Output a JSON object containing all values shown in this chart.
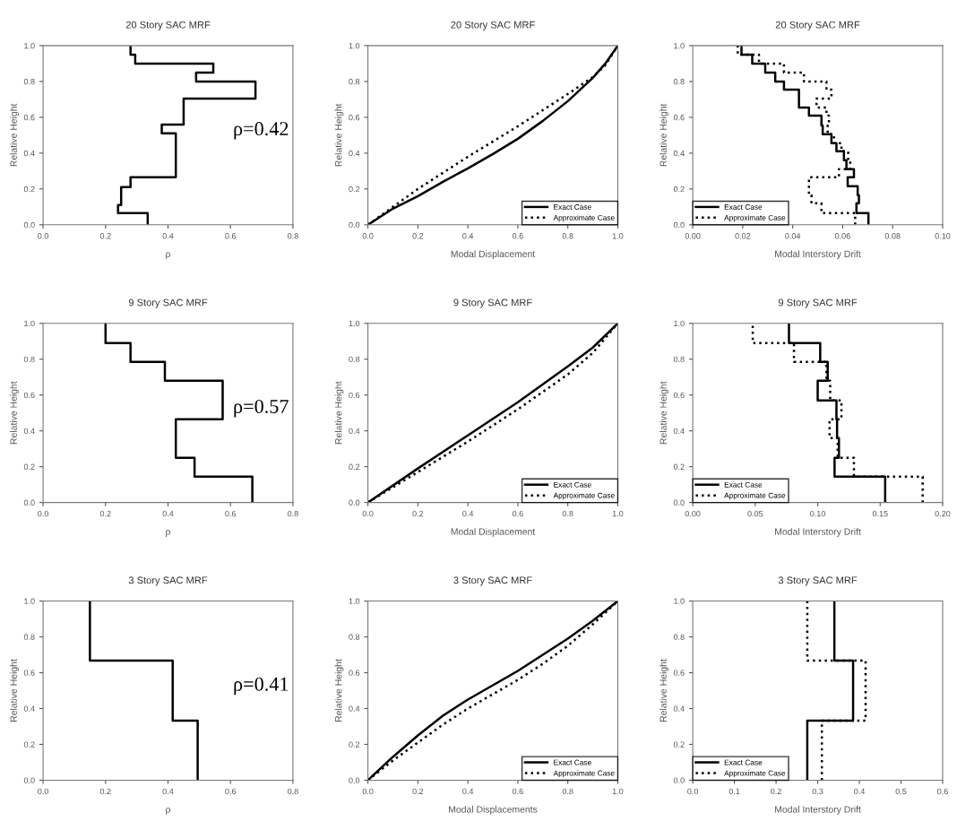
{
  "chart_data": [
    {
      "type": "line",
      "title": "20 Story SAC MRF",
      "xlabel": "ρ",
      "ylabel": "Relative Height",
      "annotations": [
        "ρ=0.42"
      ],
      "grid": false,
      "marker": "none",
      "xlim": [
        0,
        0.8
      ],
      "xticks": [
        {
          "value": 0,
          "label": "0.0"
        },
        {
          "value": 0.2,
          "label": "0.2"
        },
        {
          "value": 0.4,
          "label": "0.4"
        },
        {
          "value": 0.6,
          "label": "0.6"
        },
        {
          "value": 0.8,
          "label": "0.8"
        }
      ],
      "ylim": [
        0,
        1
      ],
      "yticks": [
        {
          "value": 0,
          "label": "0.0"
        },
        {
          "value": 0.2,
          "label": "0.2"
        },
        {
          "value": 0.4,
          "label": "0.4"
        },
        {
          "value": 0.6,
          "label": "0.6"
        },
        {
          "value": 0.8,
          "label": "0.8"
        },
        {
          "value": 1,
          "label": "1.0"
        }
      ],
      "series": [
        {
          "color": "#000000",
          "line_style": "solid",
          "x": [
            0.335,
            0.335,
            0.24,
            0.24,
            0.25,
            0.25,
            0.28,
            0.28,
            0.425,
            0.425,
            0.38,
            0.38,
            0.45,
            0.45,
            0.68,
            0.68,
            0.49,
            0.49,
            0.545,
            0.545,
            0.295,
            0.295,
            0.28,
            0.28
          ],
          "values": [
            0,
            0.065,
            0.065,
            0.11,
            0.11,
            0.21,
            0.21,
            0.265,
            0.265,
            0.51,
            0.51,
            0.56,
            0.56,
            0.705,
            0.705,
            0.8,
            0.8,
            0.85,
            0.85,
            0.9,
            0.9,
            0.95,
            0.95,
            1
          ]
        }
      ]
    },
    {
      "type": "line",
      "title": "20 Story SAC MRF",
      "xlabel": "Modal Displacement",
      "ylabel": "Relative Height",
      "grid": false,
      "marker": "none",
      "legend": "bottom right",
      "xlim": [
        0,
        1
      ],
      "xticks": [
        {
          "value": 0,
          "label": "0.0"
        },
        {
          "value": 0.2,
          "label": "0.2"
        },
        {
          "value": 0.4,
          "label": "0.4"
        },
        {
          "value": 0.6,
          "label": "0.6"
        },
        {
          "value": 0.8,
          "label": "0.8"
        },
        {
          "value": 1,
          "label": "1.0"
        }
      ],
      "ylim": [
        0,
        1
      ],
      "yticks": [
        {
          "value": 0,
          "label": "0.0"
        },
        {
          "value": 0.2,
          "label": "0.2"
        },
        {
          "value": 0.4,
          "label": "0.4"
        },
        {
          "value": 0.6,
          "label": "0.6"
        },
        {
          "value": 0.8,
          "label": "0.8"
        },
        {
          "value": 1,
          "label": "1.0"
        }
      ],
      "series": [
        {
          "name": "Exact Case",
          "color": "#000000",
          "line_style": "solid",
          "x": [
            0,
            0.1,
            0.2,
            0.3,
            0.4,
            0.5,
            0.6,
            0.7,
            0.8,
            0.9,
            0.95,
            1
          ],
          "values": [
            0,
            0.09,
            0.16,
            0.24,
            0.315,
            0.395,
            0.48,
            0.58,
            0.69,
            0.82,
            0.9,
            1
          ]
        },
        {
          "name": "Approximate Case",
          "color": "#000000",
          "line_style": "dotted",
          "x": [
            0,
            0.1,
            0.2,
            0.3,
            0.4,
            0.5,
            0.6,
            0.7,
            0.8,
            0.9,
            0.95,
            1
          ],
          "values": [
            0,
            0.1,
            0.2,
            0.29,
            0.38,
            0.465,
            0.55,
            0.64,
            0.73,
            0.825,
            0.89,
            1
          ]
        }
      ]
    },
    {
      "type": "line",
      "title": "20 Story SAC MRF",
      "xlabel": "Modal Interstory Drift",
      "ylabel": "Relative Height",
      "grid": false,
      "marker": "none",
      "legend": "bottom left",
      "xlim": [
        0,
        0.1
      ],
      "xticks": [
        {
          "value": 0,
          "label": "0.00"
        },
        {
          "value": 0.02,
          "label": "0.02"
        },
        {
          "value": 0.04,
          "label": "0.04"
        },
        {
          "value": 0.06,
          "label": "0.06"
        },
        {
          "value": 0.08,
          "label": "0.08"
        },
        {
          "value": 0.1,
          "label": "0.10"
        }
      ],
      "ylim": [
        0,
        1
      ],
      "yticks": [
        {
          "value": 0,
          "label": "0.0"
        },
        {
          "value": 0.2,
          "label": "0.2"
        },
        {
          "value": 0.4,
          "label": "0.4"
        },
        {
          "value": 0.6,
          "label": "0.6"
        },
        {
          "value": 0.8,
          "label": "0.8"
        },
        {
          "value": 1,
          "label": "1.0"
        }
      ],
      "series": [
        {
          "name": "Exact Case",
          "color": "#000000",
          "line_style": "solid",
          "x": [
            0.0703,
            0.0703,
            0.0655,
            0.0655,
            0.0665,
            0.0665,
            0.066,
            0.066,
            0.062,
            0.062,
            0.0645,
            0.0645,
            0.0615,
            0.0615,
            0.0605,
            0.0605,
            0.0575,
            0.0575,
            0.0555,
            0.0555,
            0.052,
            0.052,
            0.0515,
            0.0515,
            0.0465,
            0.0465,
            0.0425,
            0.0425,
            0.0425,
            0.0425,
            0.0365,
            0.0365,
            0.033,
            0.033,
            0.029,
            0.029,
            0.0238,
            0.0238,
            0.0195,
            0.0195
          ],
          "values": [
            0,
            0.065,
            0.065,
            0.12,
            0.12,
            0.165,
            0.165,
            0.215,
            0.215,
            0.265,
            0.265,
            0.31,
            0.31,
            0.36,
            0.36,
            0.41,
            0.41,
            0.455,
            0.455,
            0.505,
            0.505,
            0.555,
            0.555,
            0.61,
            0.61,
            0.655,
            0.655,
            0.705,
            0.705,
            0.755,
            0.755,
            0.8,
            0.8,
            0.85,
            0.85,
            0.9,
            0.9,
            0.95,
            0.95,
            1
          ]
        },
        {
          "name": "Approximate Case",
          "color": "#000000",
          "line_style": "dotted",
          "x": [
            0.065,
            0.065,
            0.0515,
            0.0515,
            0.0475,
            0.0475,
            0.0465,
            0.0465,
            0.0465,
            0.0465,
            0.0585,
            0.0585,
            0.063,
            0.063,
            0.0622,
            0.0622,
            0.0595,
            0.0595,
            0.0565,
            0.0565,
            0.054,
            0.054,
            0.0545,
            0.0545,
            0.0535,
            0.0535,
            0.0495,
            0.0495,
            0.0555,
            0.0555,
            0.0535,
            0.0535,
            0.0445,
            0.0445,
            0.0365,
            0.0365,
            0.0265,
            0.0265,
            0.018,
            0.018
          ],
          "values": [
            0,
            0.065,
            0.065,
            0.12,
            0.12,
            0.165,
            0.165,
            0.215,
            0.215,
            0.265,
            0.265,
            0.31,
            0.31,
            0.36,
            0.36,
            0.41,
            0.41,
            0.455,
            0.455,
            0.505,
            0.505,
            0.555,
            0.555,
            0.61,
            0.61,
            0.655,
            0.655,
            0.705,
            0.705,
            0.755,
            0.755,
            0.8,
            0.8,
            0.85,
            0.85,
            0.9,
            0.9,
            0.95,
            0.95,
            1
          ]
        }
      ]
    },
    {
      "type": "line",
      "title": "9 Story SAC MRF",
      "xlabel": "ρ",
      "ylabel": "Relative Height",
      "annotations": [
        "ρ=0.57"
      ],
      "grid": false,
      "marker": "none",
      "xlim": [
        0,
        0.8
      ],
      "xticks": [
        {
          "value": 0,
          "label": "0.0"
        },
        {
          "value": 0.2,
          "label": "0.2"
        },
        {
          "value": 0.4,
          "label": "0.4"
        },
        {
          "value": 0.6,
          "label": "0.6"
        },
        {
          "value": 0.8,
          "label": "0.8"
        }
      ],
      "ylim": [
        0,
        1
      ],
      "yticks": [
        {
          "value": 0,
          "label": "0.0"
        },
        {
          "value": 0.2,
          "label": "0.2"
        },
        {
          "value": 0.4,
          "label": "0.4"
        },
        {
          "value": 0.6,
          "label": "0.6"
        },
        {
          "value": 0.8,
          "label": "0.8"
        },
        {
          "value": 1,
          "label": "1.0"
        }
      ],
      "series": [
        {
          "color": "#000000",
          "line_style": "solid",
          "x": [
            0.67,
            0.67,
            0.485,
            0.485,
            0.425,
            0.425,
            0.575,
            0.575,
            0.39,
            0.39,
            0.28,
            0.28,
            0.2,
            0.2
          ],
          "values": [
            0,
            0.145,
            0.145,
            0.25,
            0.25,
            0.465,
            0.465,
            0.68,
            0.68,
            0.785,
            0.785,
            0.89,
            0.89,
            1
          ]
        }
      ]
    },
    {
      "type": "line",
      "title": "9 Story SAC MRF",
      "xlabel": "Modal Displacement",
      "ylabel": "Relative Height",
      "grid": false,
      "marker": "none",
      "legend": "bottom right",
      "xlim": [
        0,
        1
      ],
      "xticks": [
        {
          "value": 0,
          "label": "0.0"
        },
        {
          "value": 0.2,
          "label": "0.2"
        },
        {
          "value": 0.4,
          "label": "0.4"
        },
        {
          "value": 0.6,
          "label": "0.6"
        },
        {
          "value": 0.8,
          "label": "0.8"
        },
        {
          "value": 1,
          "label": "1.0"
        }
      ],
      "ylim": [
        0,
        1
      ],
      "yticks": [
        {
          "value": 0,
          "label": "0.0"
        },
        {
          "value": 0.2,
          "label": "0.2"
        },
        {
          "value": 0.4,
          "label": "0.4"
        },
        {
          "value": 0.6,
          "label": "0.6"
        },
        {
          "value": 0.8,
          "label": "0.8"
        },
        {
          "value": 1,
          "label": "1.0"
        }
      ],
      "series": [
        {
          "name": "Exact Case",
          "color": "#000000",
          "line_style": "solid",
          "x": [
            0,
            0.2,
            0.4,
            0.6,
            0.8,
            0.9,
            1
          ],
          "values": [
            0,
            0.19,
            0.375,
            0.56,
            0.76,
            0.865,
            1
          ]
        },
        {
          "name": "Approximate Case",
          "color": "#000000",
          "line_style": "dotted",
          "x": [
            0,
            0.2,
            0.4,
            0.6,
            0.8,
            0.9,
            1
          ],
          "values": [
            0,
            0.17,
            0.34,
            0.52,
            0.715,
            0.835,
            1
          ]
        }
      ]
    },
    {
      "type": "line",
      "title": "9 Story SAC MRF",
      "xlabel": "Modal Interstory Drift",
      "ylabel": "Relative Height",
      "grid": false,
      "marker": "none",
      "legend": "bottom left",
      "xlim": [
        0,
        0.2
      ],
      "xticks": [
        {
          "value": 0,
          "label": "0.00"
        },
        {
          "value": 0.05,
          "label": "0.05"
        },
        {
          "value": 0.1,
          "label": "0.10"
        },
        {
          "value": 0.15,
          "label": "0.15"
        },
        {
          "value": 0.2,
          "label": "0.20"
        }
      ],
      "ylim": [
        0,
        1
      ],
      "yticks": [
        {
          "value": 0,
          "label": "0.0"
        },
        {
          "value": 0.2,
          "label": "0.2"
        },
        {
          "value": 0.4,
          "label": "0.4"
        },
        {
          "value": 0.6,
          "label": "0.6"
        },
        {
          "value": 0.8,
          "label": "0.8"
        },
        {
          "value": 1,
          "label": "1.0"
        }
      ],
      "series": [
        {
          "name": "Exact Case",
          "color": "#000000",
          "line_style": "solid",
          "x": [
            0.154,
            0.154,
            0.1135,
            0.1135,
            0.117,
            0.117,
            0.1155,
            0.1155,
            0.115,
            0.115,
            0.1,
            0.1,
            0.108,
            0.108,
            0.102,
            0.102,
            0.077,
            0.077
          ],
          "values": [
            0,
            0.145,
            0.145,
            0.25,
            0.25,
            0.36,
            0.36,
            0.465,
            0.465,
            0.57,
            0.57,
            0.68,
            0.68,
            0.785,
            0.785,
            0.89,
            0.89,
            1
          ]
        },
        {
          "name": "Approximate Case",
          "color": "#000000",
          "line_style": "dotted",
          "x": [
            0.184,
            0.184,
            0.129,
            0.129,
            0.116,
            0.116,
            0.1095,
            0.1095,
            0.119,
            0.119,
            0.11,
            0.11,
            0.107,
            0.107,
            0.081,
            0.081,
            0.048,
            0.048
          ],
          "values": [
            0,
            0.145,
            0.145,
            0.25,
            0.25,
            0.36,
            0.36,
            0.465,
            0.465,
            0.57,
            0.57,
            0.68,
            0.68,
            0.785,
            0.785,
            0.89,
            0.89,
            1
          ]
        }
      ]
    },
    {
      "type": "line",
      "title": "3 Story SAC MRF",
      "xlabel": "ρ",
      "ylabel": "Relative Height",
      "annotations": [
        "ρ=0.41"
      ],
      "grid": false,
      "marker": "none",
      "xlim": [
        0,
        0.8
      ],
      "xticks": [
        {
          "value": 0,
          "label": "0.0"
        },
        {
          "value": 0.2,
          "label": "0.2"
        },
        {
          "value": 0.4,
          "label": "0.4"
        },
        {
          "value": 0.6,
          "label": "0.6"
        },
        {
          "value": 0.8,
          "label": "0.8"
        }
      ],
      "ylim": [
        0,
        1
      ],
      "yticks": [
        {
          "value": 0,
          "label": "0.0"
        },
        {
          "value": 0.2,
          "label": "0.2"
        },
        {
          "value": 0.4,
          "label": "0.4"
        },
        {
          "value": 0.6,
          "label": "0.6"
        },
        {
          "value": 0.8,
          "label": "0.8"
        },
        {
          "value": 1,
          "label": "1.0"
        }
      ],
      "series": [
        {
          "color": "#000000",
          "line_style": "solid",
          "x": [
            0.495,
            0.495,
            0.415,
            0.415,
            0.15,
            0.15
          ],
          "values": [
            0,
            0.333,
            0.333,
            0.667,
            0.667,
            1
          ]
        }
      ]
    },
    {
      "type": "line",
      "title": "3 Story SAC MRF",
      "xlabel": "Modal Displacements",
      "ylabel": "Relative Height",
      "grid": false,
      "marker": "none",
      "legend": "bottom right",
      "xlim": [
        0,
        1
      ],
      "xticks": [
        {
          "value": 0,
          "label": "0.0"
        },
        {
          "value": 0.2,
          "label": "0.2"
        },
        {
          "value": 0.4,
          "label": "0.4"
        },
        {
          "value": 0.6,
          "label": "0.6"
        },
        {
          "value": 0.8,
          "label": "0.8"
        },
        {
          "value": 1,
          "label": "1.0"
        }
      ],
      "ylim": [
        0,
        1
      ],
      "yticks": [
        {
          "value": 0,
          "label": "0.0"
        },
        {
          "value": 0.2,
          "label": "0.2"
        },
        {
          "value": 0.4,
          "label": "0.4"
        },
        {
          "value": 0.6,
          "label": "0.6"
        },
        {
          "value": 0.8,
          "label": "0.8"
        },
        {
          "value": 1,
          "label": "1.0"
        }
      ],
      "series": [
        {
          "name": "Exact Case",
          "color": "#000000",
          "line_style": "solid",
          "x": [
            0,
            0.1,
            0.2,
            0.3,
            0.4,
            0.5,
            0.6,
            0.7,
            0.8,
            0.9,
            1
          ],
          "values": [
            0,
            0.13,
            0.25,
            0.36,
            0.45,
            0.53,
            0.61,
            0.7,
            0.79,
            0.89,
            1
          ]
        },
        {
          "name": "Approximate Case",
          "color": "#000000",
          "line_style": "dotted",
          "x": [
            0,
            0.1,
            0.2,
            0.3,
            0.4,
            0.5,
            0.6,
            0.7,
            0.8,
            0.9,
            1
          ],
          "values": [
            0,
            0.11,
            0.21,
            0.31,
            0.4,
            0.48,
            0.56,
            0.65,
            0.75,
            0.87,
            1
          ]
        }
      ]
    },
    {
      "type": "line",
      "title": "3 Story SAC MRF",
      "xlabel": "Modal Interstory Drift",
      "ylabel": "Relative Height",
      "grid": false,
      "marker": "none",
      "legend": "bottom left",
      "xlim": [
        0,
        0.6
      ],
      "xticks": [
        {
          "value": 0,
          "label": "0.0"
        },
        {
          "value": 0.1,
          "label": "0.1"
        },
        {
          "value": 0.2,
          "label": "0.2"
        },
        {
          "value": 0.3,
          "label": "0.3"
        },
        {
          "value": 0.4,
          "label": "0.4"
        },
        {
          "value": 0.5,
          "label": "0.5"
        },
        {
          "value": 0.6,
          "label": "0.6"
        }
      ],
      "ylim": [
        0,
        1
      ],
      "yticks": [
        {
          "value": 0,
          "label": "0.0"
        },
        {
          "value": 0.2,
          "label": "0.2"
        },
        {
          "value": 0.4,
          "label": "0.4"
        },
        {
          "value": 0.6,
          "label": "0.6"
        },
        {
          "value": 0.8,
          "label": "0.8"
        },
        {
          "value": 1,
          "label": "1.0"
        }
      ],
      "series": [
        {
          "name": "Exact Case",
          "color": "#000000",
          "line_style": "solid",
          "x": [
            0.275,
            0.275,
            0.385,
            0.385,
            0.34,
            0.34
          ],
          "values": [
            0,
            0.333,
            0.333,
            0.667,
            0.667,
            1
          ]
        },
        {
          "name": "Approximate Case",
          "color": "#000000",
          "line_style": "dotted",
          "x": [
            0.31,
            0.31,
            0.415,
            0.415,
            0.275,
            0.275
          ],
          "values": [
            0,
            0.333,
            0.333,
            0.667,
            0.667,
            1
          ]
        }
      ]
    }
  ]
}
